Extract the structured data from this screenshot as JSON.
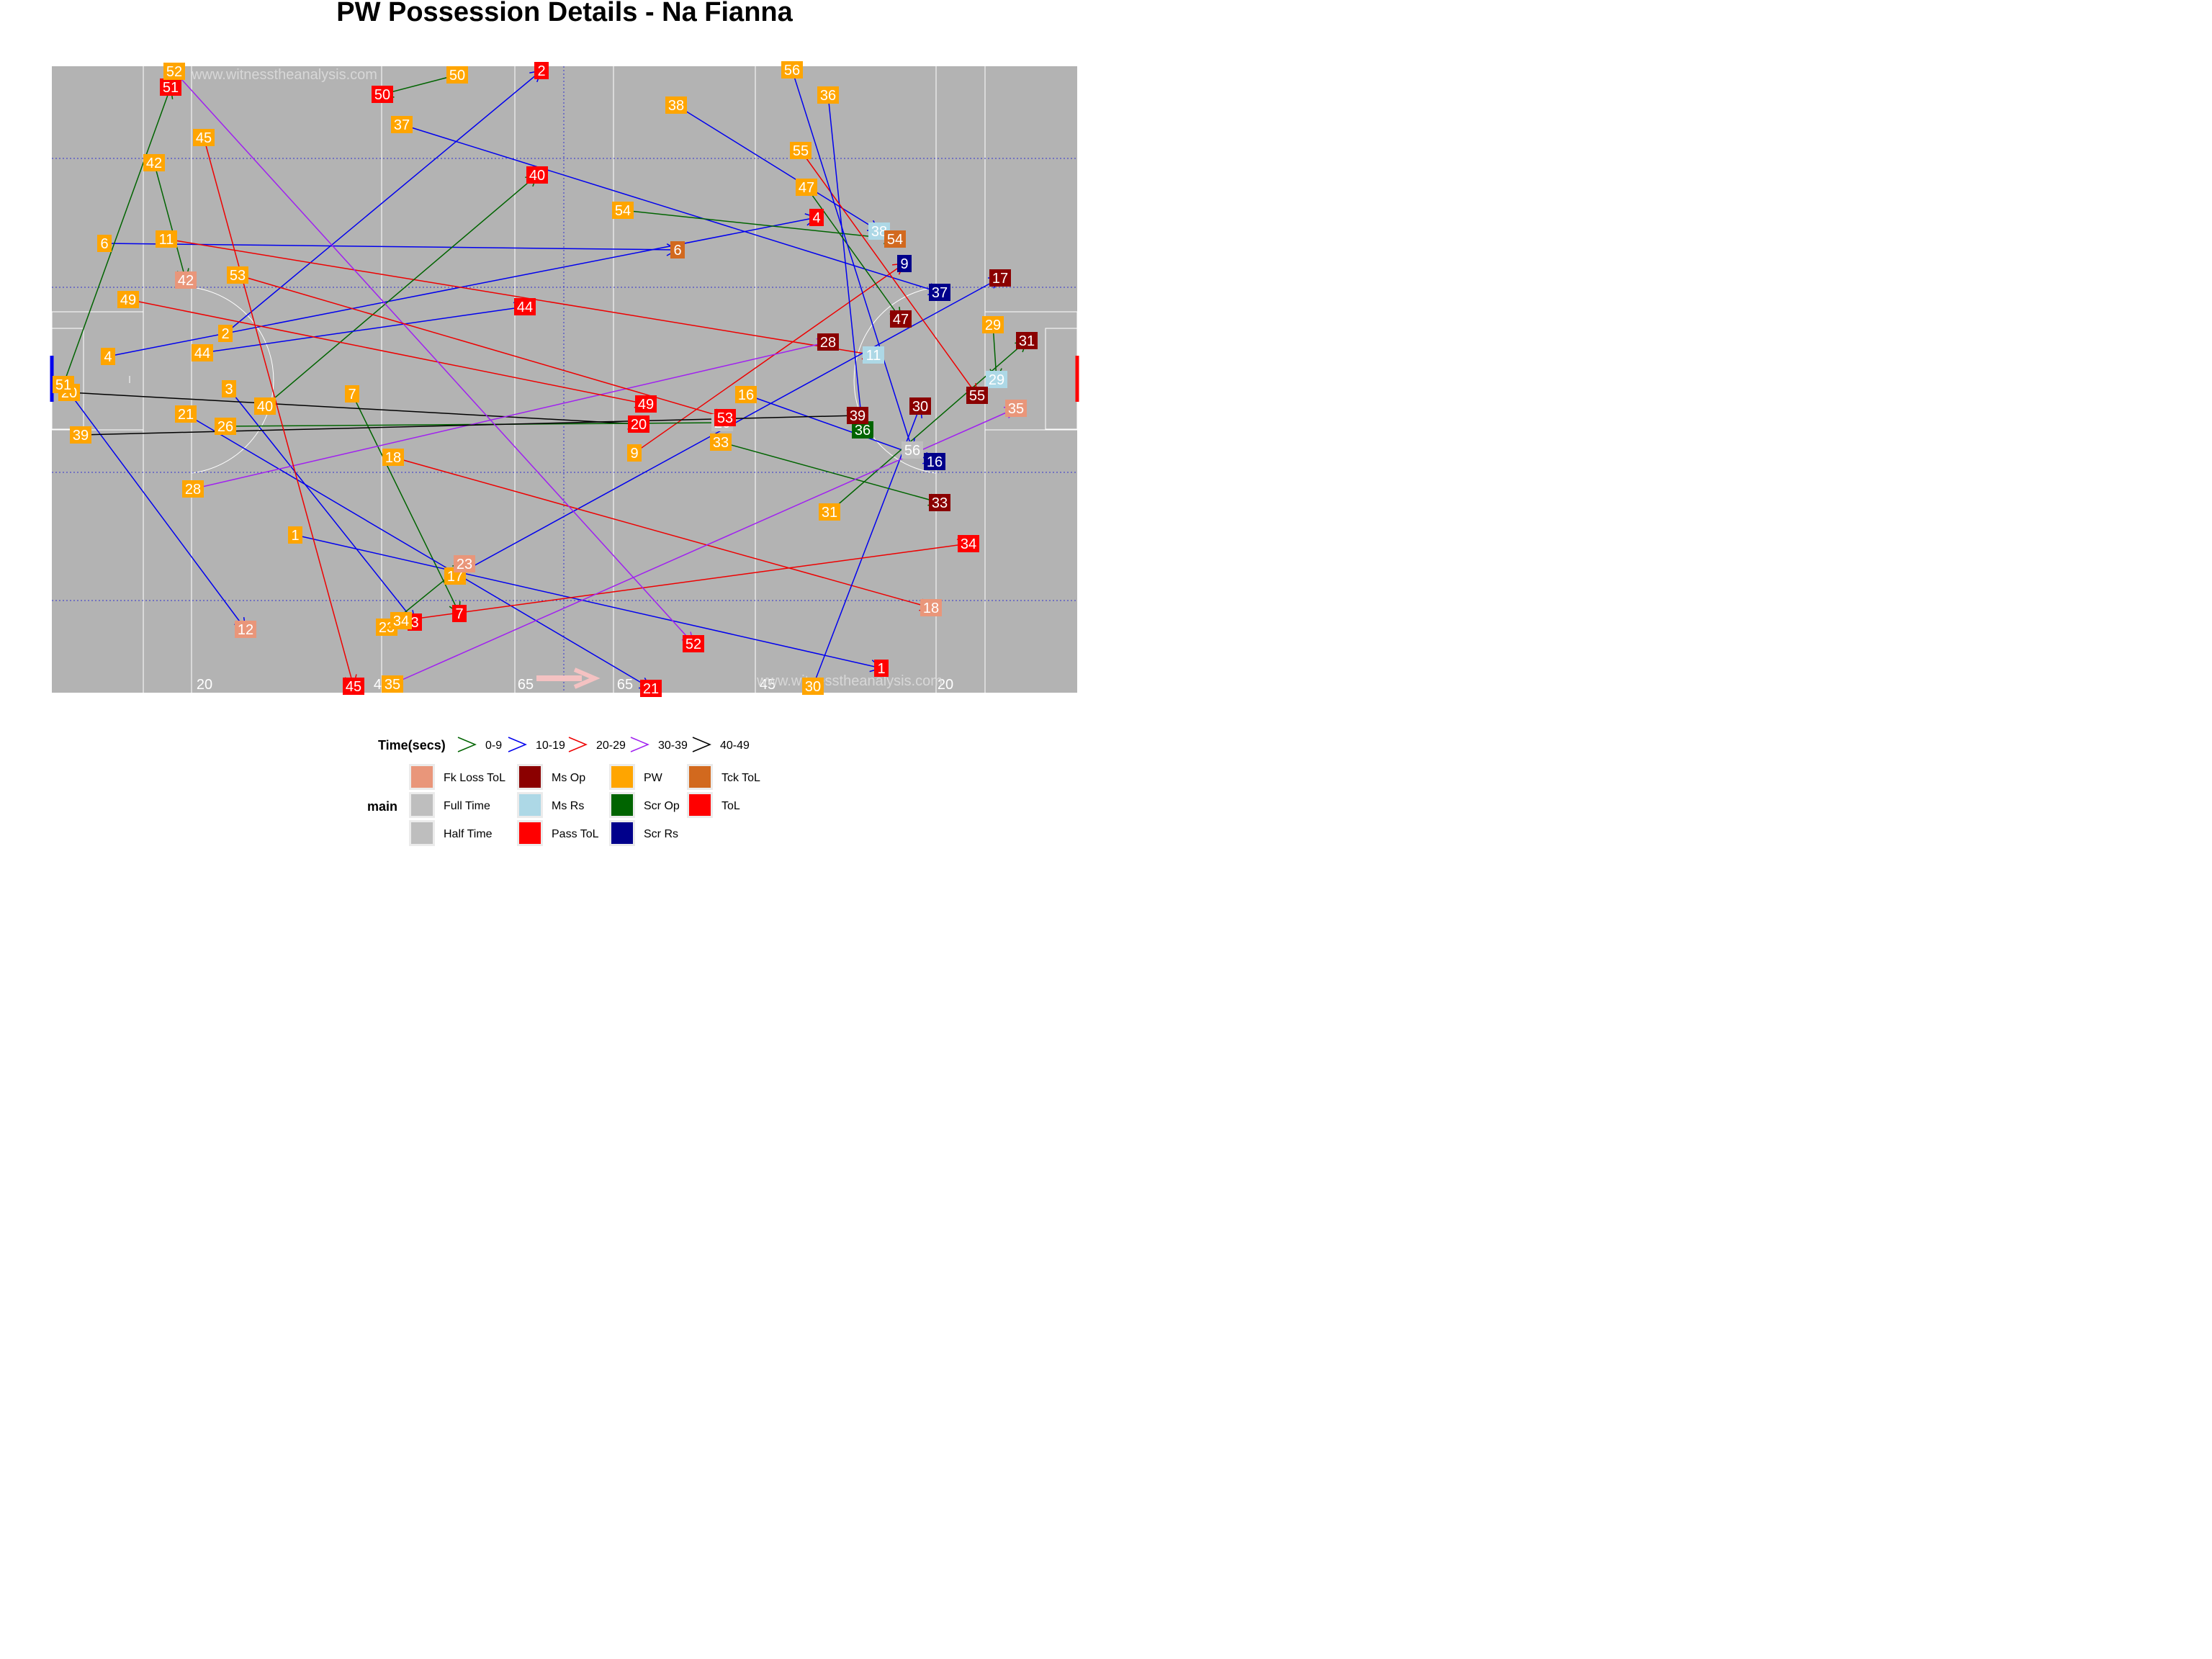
{
  "title": "PW Possession Details - Na Fianna",
  "watermark": [
    "www.witnesstheanalysis.com",
    "www.witnesstheanalysis.com"
  ],
  "pitch": {
    "color": "#b3b3b3",
    "line_color": "#ffffff",
    "guide_color": "#3333cc",
    "markings": [
      "20",
      "45",
      "65",
      "65",
      "45",
      "20"
    ],
    "direction_arrow_color": "#f4c2c2"
  },
  "chart_data": {
    "type": "scatter",
    "time_legend": {
      "title": "Time(secs)",
      "bands": [
        {
          "label": "0-9",
          "color": "#006400"
        },
        {
          "label": "10-19",
          "color": "#0000ee"
        },
        {
          "label": "20-29",
          "color": "#ee0000"
        },
        {
          "label": "30-39",
          "color": "#a020f0"
        },
        {
          "label": "40-49",
          "color": "#000000"
        }
      ]
    },
    "main_legend": {
      "title": "main",
      "entries": [
        {
          "label": "Fk Loss ToL",
          "color": "#e9967a"
        },
        {
          "label": "Full Time",
          "color": "#bebebe"
        },
        {
          "label": "Half Time",
          "color": "#bebebe"
        },
        {
          "label": "Ms Op",
          "color": "#8b0000"
        },
        {
          "label": "Ms Rs",
          "color": "#add8e6"
        },
        {
          "label": "Pass ToL",
          "color": "#ff0000"
        },
        {
          "label": "PW",
          "color": "#ffa500"
        },
        {
          "label": "Scr Op",
          "color": "#006400"
        },
        {
          "label": "Scr Rs",
          "color": "#00008b"
        },
        {
          "label": "Tck ToL",
          "color": "#d2691e"
        },
        {
          "label": "ToL",
          "color": "#ff0000"
        }
      ]
    },
    "possessions": [
      {
        "id": "1",
        "start": [
          410,
          743
        ],
        "end": [
          1224,
          928
        ],
        "band": "10-19",
        "outcome": "ToL"
      },
      {
        "id": "2",
        "start": [
          313,
          463
        ],
        "end": [
          752,
          98
        ],
        "band": "10-19",
        "outcome": "Pass ToL"
      },
      {
        "id": "3",
        "start": [
          318,
          540
        ],
        "end": [
          576,
          864
        ],
        "band": "10-19",
        "outcome": "Pass ToL"
      },
      {
        "id": "4",
        "start": [
          150,
          495
        ],
        "end": [
          1134,
          302
        ],
        "band": "10-19",
        "outcome": "Pass ToL"
      },
      {
        "id": "6",
        "start": [
          145,
          338
        ],
        "end": [
          941,
          347
        ],
        "band": "10-19",
        "outcome": "Tck ToL"
      },
      {
        "id": "7",
        "start": [
          489,
          547
        ],
        "end": [
          638,
          852
        ],
        "band": "0-9",
        "outcome": "Pass ToL"
      },
      {
        "id": "9",
        "start": [
          881,
          629
        ],
        "end": [
          1256,
          366
        ],
        "band": "20-29",
        "outcome": "Scr Rs"
      },
      {
        "id": "11",
        "start": [
          231,
          332
        ],
        "end": [
          1213,
          493
        ],
        "band": "20-29",
        "outcome": "Ms Rs"
      },
      {
        "id": "12",
        "start": [
          96,
          545
        ],
        "end": [
          341,
          874
        ],
        "band": "10-19",
        "outcome": "Fk Loss ToL"
      },
      {
        "id": "16",
        "start": [
          1036,
          548
        ],
        "end": [
          1298,
          641
        ],
        "band": "10-19",
        "outcome": "Scr Rs"
      },
      {
        "id": "17",
        "start": [
          632,
          800
        ],
        "end": [
          1389,
          386
        ],
        "band": "10-19",
        "outcome": "Ms Op"
      },
      {
        "id": "18",
        "start": [
          546,
          635
        ],
        "end": [
          1293,
          844
        ],
        "band": "20-29",
        "outcome": "Fk Loss ToL"
      },
      {
        "id": "20",
        "start": [
          96,
          545
        ],
        "end": [
          887,
          589
        ],
        "band": "40-49",
        "outcome": "Pass ToL"
      },
      {
        "id": "21",
        "start": [
          258,
          575
        ],
        "end": [
          904,
          956
        ],
        "band": "10-19",
        "outcome": "Pass ToL"
      },
      {
        "id": "23",
        "start": [
          537,
          871
        ],
        "end": [
          645,
          783
        ],
        "band": "0-9",
        "outcome": "Fk Loss ToL"
      },
      {
        "id": "26",
        "start": [
          313,
          592
        ],
        "end": [
          1003,
          587
        ],
        "band": "0-9",
        "outcome": "Half Time"
      },
      {
        "id": "28",
        "start": [
          268,
          679
        ],
        "end": [
          1150,
          475
        ],
        "band": "30-39",
        "outcome": "Ms Op"
      },
      {
        "id": "29",
        "start": [
          1379,
          451
        ],
        "end": [
          1384,
          527
        ],
        "band": "0-9",
        "outcome": "Ms Rs"
      },
      {
        "id": "30",
        "start": [
          1129,
          953
        ],
        "end": [
          1278,
          564
        ],
        "band": "10-19",
        "outcome": "Ms Op"
      },
      {
        "id": "31",
        "start": [
          1152,
          711
        ],
        "end": [
          1426,
          473
        ],
        "band": "0-9",
        "outcome": "Ms Op"
      },
      {
        "id": "33",
        "start": [
          1001,
          614
        ],
        "end": [
          1305,
          698
        ],
        "band": "0-9",
        "outcome": "Ms Op"
      },
      {
        "id": "34",
        "start": [
          557,
          862
        ],
        "end": [
          1345,
          755
        ],
        "band": "20-29",
        "outcome": "Pass ToL"
      },
      {
        "id": "35",
        "start": [
          545,
          950
        ],
        "end": [
          1411,
          567
        ],
        "band": "30-39",
        "outcome": "Fk Loss ToL"
      },
      {
        "id": "36",
        "start": [
          1150,
          132
        ],
        "end": [
          1198,
          597
        ],
        "band": "10-19",
        "outcome": "Scr Op"
      },
      {
        "id": "37",
        "start": [
          558,
          173
        ],
        "end": [
          1305,
          406
        ],
        "band": "10-19",
        "outcome": "Scr Rs"
      },
      {
        "id": "38",
        "start": [
          939,
          146
        ],
        "end": [
          1221,
          321
        ],
        "band": "10-19",
        "outcome": "Ms Rs"
      },
      {
        "id": "39",
        "start": [
          112,
          604
        ],
        "end": [
          1191,
          577
        ],
        "band": "40-49",
        "outcome": "Ms Op"
      },
      {
        "id": "40",
        "start": [
          368,
          564
        ],
        "end": [
          746,
          243
        ],
        "band": "0-9",
        "outcome": "Pass ToL"
      },
      {
        "id": "42",
        "start": [
          214,
          226
        ],
        "end": [
          258,
          389
        ],
        "band": "0-9",
        "outcome": "Fk Loss ToL"
      },
      {
        "id": "44",
        "start": [
          281,
          490
        ],
        "end": [
          729,
          426
        ],
        "band": "10-19",
        "outcome": "Pass ToL"
      },
      {
        "id": "45",
        "start": [
          283,
          191
        ],
        "end": [
          491,
          953
        ],
        "band": "20-29",
        "outcome": "Pass ToL"
      },
      {
        "id": "47",
        "start": [
          1120,
          260
        ],
        "end": [
          1251,
          443
        ],
        "band": "0-9",
        "outcome": "Ms Op"
      },
      {
        "id": "49",
        "start": [
          178,
          416
        ],
        "end": [
          897,
          561
        ],
        "band": "20-29",
        "outcome": "Pass ToL"
      },
      {
        "id": "50",
        "start": [
          635,
          104
        ],
        "end": [
          531,
          131
        ],
        "band": "0-9",
        "outcome": "Pass ToL"
      },
      {
        "id": "51",
        "start": [
          88,
          534
        ],
        "end": [
          237,
          121
        ],
        "band": "0-9",
        "outcome": "Pass ToL"
      },
      {
        "id": "52",
        "start": [
          242,
          99
        ],
        "end": [
          963,
          894
        ],
        "band": "30-39",
        "outcome": "Pass ToL"
      },
      {
        "id": "53",
        "start": [
          330,
          382
        ],
        "end": [
          1007,
          580
        ],
        "band": "20-29",
        "outcome": "Pass ToL"
      },
      {
        "id": "54",
        "start": [
          865,
          292
        ],
        "end": [
          1243,
          332
        ],
        "band": "0-9",
        "outcome": "Tck ToL"
      },
      {
        "id": "55",
        "start": [
          1112,
          209
        ],
        "end": [
          1357,
          549
        ],
        "band": "20-29",
        "outcome": "Ms Op"
      },
      {
        "id": "56",
        "start": [
          1100,
          97
        ],
        "end": [
          1267,
          625
        ],
        "band": "10-19",
        "outcome": "Full Time"
      }
    ]
  }
}
